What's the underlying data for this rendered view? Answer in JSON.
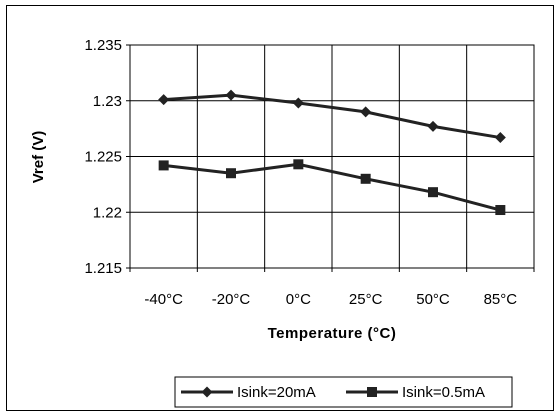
{
  "chart_data": {
    "type": "line",
    "title": "",
    "categories": [
      "-40°C",
      "-20°C",
      "0°C",
      "25°C",
      "50°C",
      "85°C"
    ],
    "xlabel": "Temperature (°C)",
    "ylabel": "Vref (V)",
    "ylim": [
      1.215,
      1.235
    ],
    "yticks": [
      "1.215",
      "1.22",
      "1.225",
      "1.23",
      "1.235"
    ],
    "grid": true,
    "legend_position": "bottom-right",
    "series": [
      {
        "name": "Isink=20mA",
        "marker": "diamond",
        "color": "#222222",
        "values": [
          1.2301,
          1.2305,
          1.2298,
          1.229,
          1.2277,
          1.2267
        ]
      },
      {
        "name": "Isink=0.5mA",
        "marker": "square",
        "color": "#222222",
        "values": [
          1.2242,
          1.2235,
          1.2243,
          1.223,
          1.2218,
          1.2202
        ]
      }
    ]
  }
}
